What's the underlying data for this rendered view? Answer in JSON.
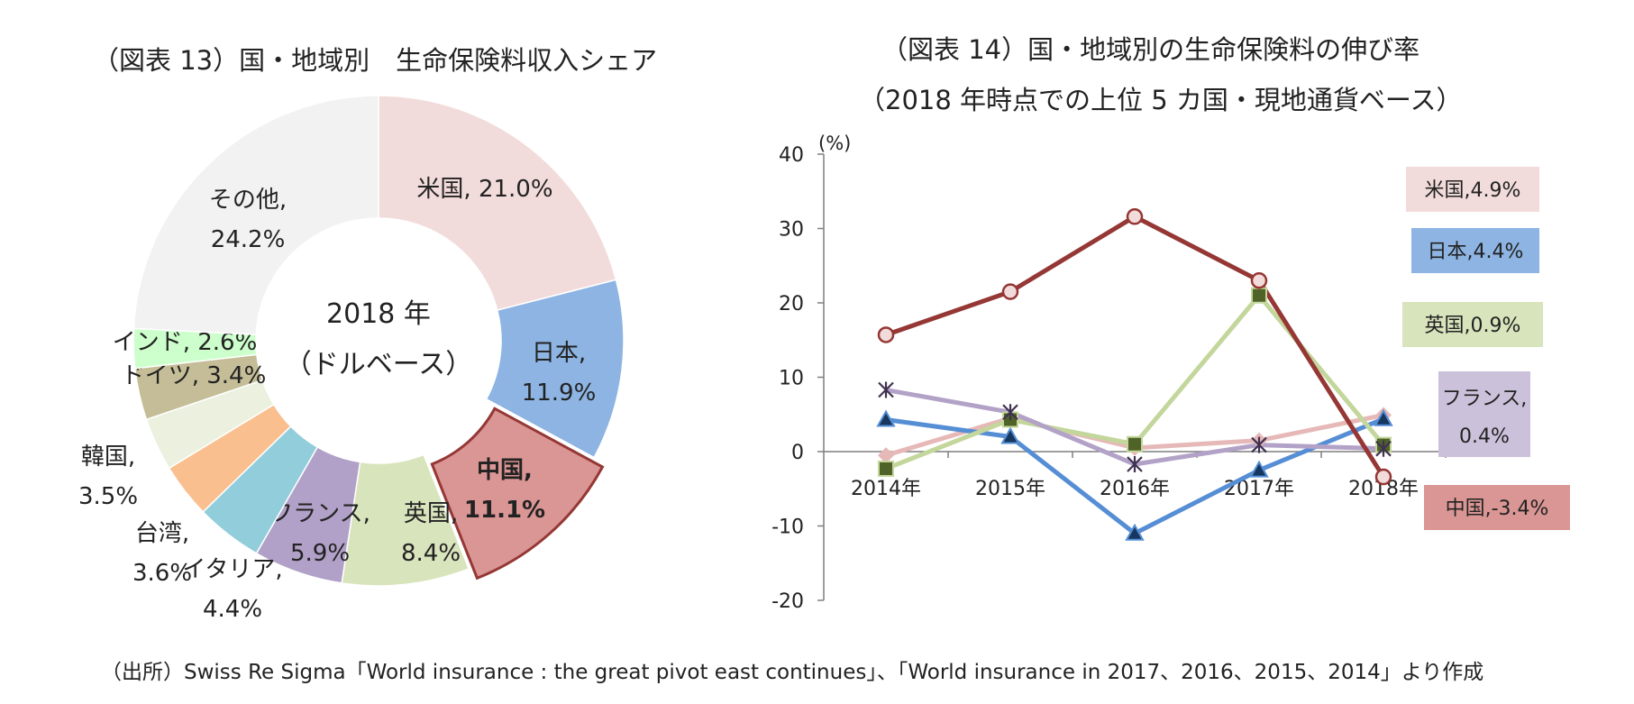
{
  "source_note": "（出所）Swiss Re Sigma「World insurance : the great pivot east continues」、「World insurance in 2017、2016、2015、2014」より作成",
  "chart_data": [
    {
      "type": "pie",
      "variant": "donut",
      "title": "（図表 13）国・地域別　生命保険料収入シェア",
      "center_label": [
        "2018 年",
        "（ドルベース）"
      ],
      "slices": [
        {
          "name": "米国",
          "value": 21.0,
          "label": [
            "米国, 21.0%"
          ],
          "color": "#f2dcdb"
        },
        {
          "name": "日本",
          "value": 11.9,
          "label": [
            "日本,",
            "11.9%"
          ],
          "color": "#8db4e2"
        },
        {
          "name": "中国",
          "value": 11.1,
          "label": [
            "中国,",
            "11.1%"
          ],
          "color": "#da9694",
          "highlight": true,
          "stroke": "#953735"
        },
        {
          "name": "英国",
          "value": 8.4,
          "label": [
            "英国,",
            "8.4%"
          ],
          "color": "#d8e4bc"
        },
        {
          "name": "フランス",
          "value": 5.9,
          "label": [
            "フランス,",
            "5.9%"
          ],
          "color": "#b1a0c7"
        },
        {
          "name": "イタリア",
          "value": 4.4,
          "label": [
            "イタリア,",
            "4.4%"
          ],
          "color": "#92cddc"
        },
        {
          "name": "台湾",
          "value": 3.6,
          "label": [
            "台湾,",
            "3.6%"
          ],
          "color": "#fabf8f"
        },
        {
          "name": "韓国",
          "value": 3.5,
          "label": [
            "韓国,",
            "3.5%"
          ],
          "color": "#ebf1de"
        },
        {
          "name": "ドイツ",
          "value": 3.4,
          "label": [
            "ドイツ, 3.4%"
          ],
          "color": "#c4bd97"
        },
        {
          "name": "インド",
          "value": 2.6,
          "label": [
            "インド, 2.6%"
          ],
          "color": "#ccffcc"
        },
        {
          "name": "その他",
          "value": 24.2,
          "label": [
            "その他,",
            "24.2%"
          ],
          "color": "#f2f2f2"
        }
      ]
    },
    {
      "type": "line",
      "title": "（図表 14）国・地域別の生命保険料の伸び率",
      "subtitle": "（2018 年時点での上位 5 カ国・現地通貨ベース）",
      "ylabel": "(%)",
      "x": [
        "2014年",
        "2015年",
        "2016年",
        "2017年",
        "2018年"
      ],
      "ylim": [
        -20,
        40
      ],
      "yticks": [
        40,
        30,
        20,
        10,
        0,
        -10,
        -20
      ],
      "grid": false,
      "series": [
        {
          "name": "米国",
          "values": [
            -0.5,
            4.5,
            0.5,
            1.5,
            4.9
          ],
          "color": "#e6b9b8",
          "marker": "diamond",
          "legend": "米国,4.9%",
          "legend_color": "#f2dcdb"
        },
        {
          "name": "日本",
          "values": [
            4.3,
            2.0,
            -11.0,
            -2.5,
            4.4
          ],
          "color": "#558ed5",
          "marker": "triangle",
          "legend": "日本,4.4%",
          "legend_color": "#8db4e2"
        },
        {
          "name": "英国",
          "values": [
            -2.3,
            4.3,
            1.0,
            21.0,
            0.9
          ],
          "color": "#c3d69b",
          "marker": "square",
          "legend": "英国,0.9%",
          "legend_color": "#d8e4bc"
        },
        {
          "name": "フランス",
          "values": [
            8.3,
            5.3,
            -1.7,
            0.9,
            0.4
          ],
          "color": "#b3a2c7",
          "marker": "star",
          "legend": "フランス,\n0.4%",
          "legend_color": "#ccc1da"
        },
        {
          "name": "中国",
          "values": [
            15.7,
            21.5,
            31.6,
            23.0,
            -3.4
          ],
          "color": "#953735",
          "marker": "circle",
          "legend": "中国,-3.4%",
          "legend_color": "#da9694"
        }
      ]
    }
  ]
}
